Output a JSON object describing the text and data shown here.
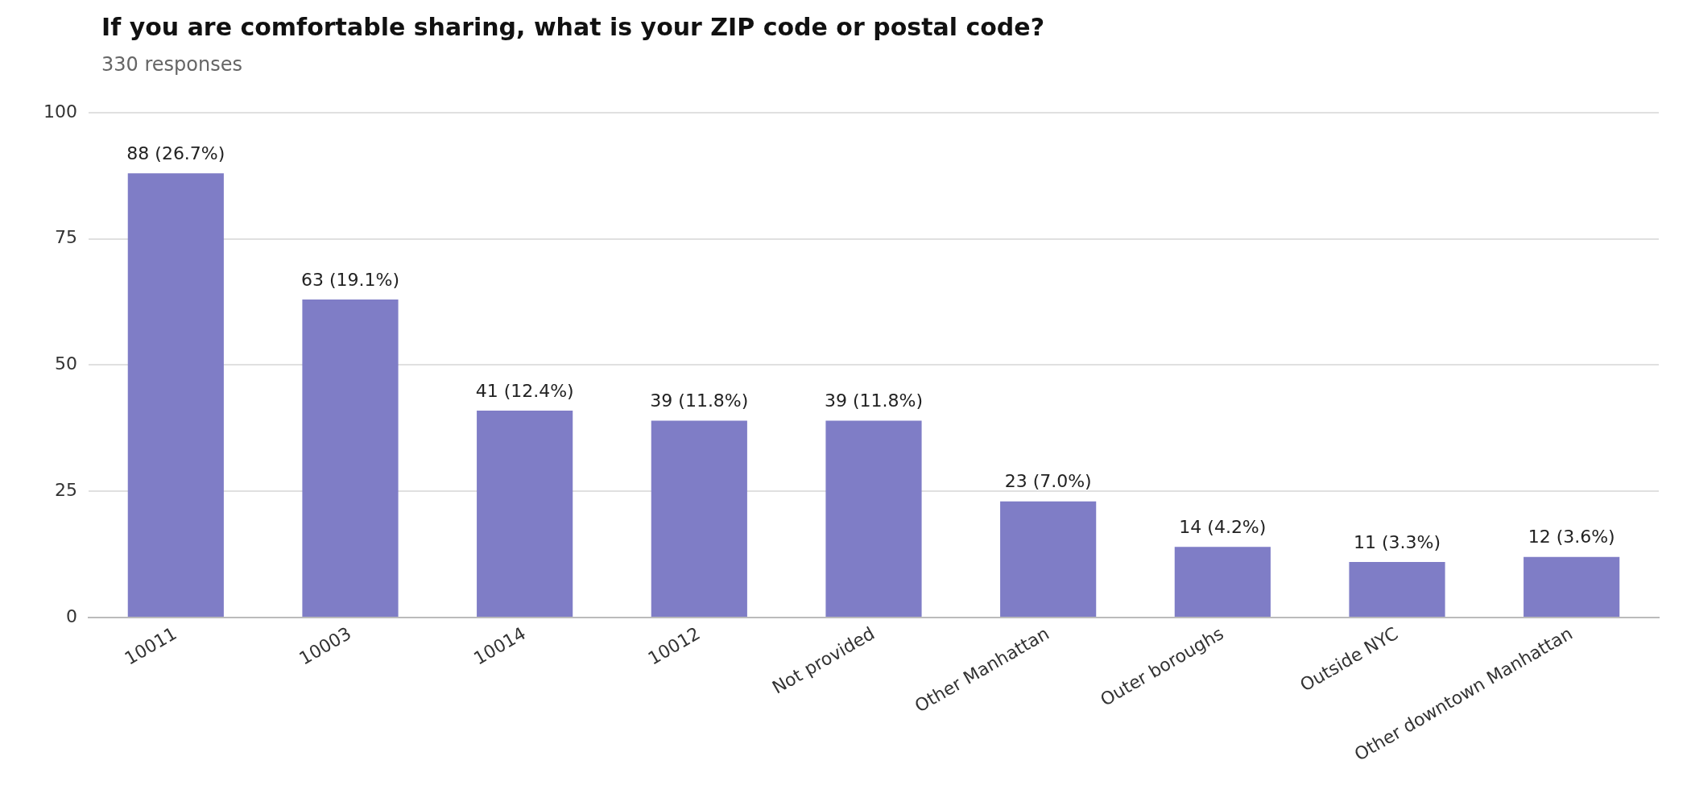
{
  "chart_data": {
    "type": "bar",
    "title": "If you are comfortable sharing, what is your ZIP code or postal code?",
    "subtitle": "330 responses",
    "categories": [
      "10011",
      "10003",
      "10014",
      "10012",
      "Not provided",
      "Other Manhattan",
      "Outer boroughs",
      "Outside NYC",
      "Other downtown Manhattan"
    ],
    "values": [
      88,
      63,
      41,
      39,
      39,
      23,
      14,
      11,
      12
    ],
    "value_labels": [
      "88 (26.7%)",
      "63 (19.1%)",
      "41 (12.4%)",
      "39 (11.8%)",
      "39 (11.8%)",
      "23 (7.0%)",
      "14 (4.2%)",
      "11 (3.3%)",
      "12 (3.6%)"
    ],
    "color": "#7f7dc6",
    "ylim": [
      0,
      100
    ],
    "yticks": [
      0,
      25,
      50,
      75,
      100
    ],
    "grid": "y",
    "legend": false
  }
}
